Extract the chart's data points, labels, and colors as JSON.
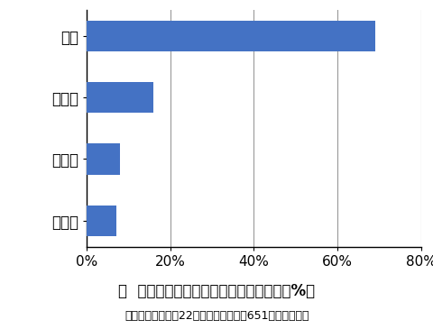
{
  "categories": [
    "その他",
    "販売店",
    "飲食店",
    "家庭"
  ],
  "values": [
    7,
    8,
    16,
    69
  ],
  "bar_color": "#4472C4",
  "xlim": [
    0,
    80
  ],
  "xticks": [
    0,
    20,
    40,
    60,
    80
  ],
  "xtick_labels": [
    "0%",
    "20%",
    "40%",
    "60%",
    "80%"
  ],
  "figure_title": "図  フグによる食中毒の原因施設の比率（%）",
  "figure_subtitle": "（平成元年～平成22年、総発生件数：651件（注１））",
  "background_color": "#ffffff",
  "bar_height": 0.5,
  "title_fontsize": 12,
  "subtitle_fontsize": 9,
  "ylabel_fontsize": 12,
  "xlabel_fontsize": 11
}
